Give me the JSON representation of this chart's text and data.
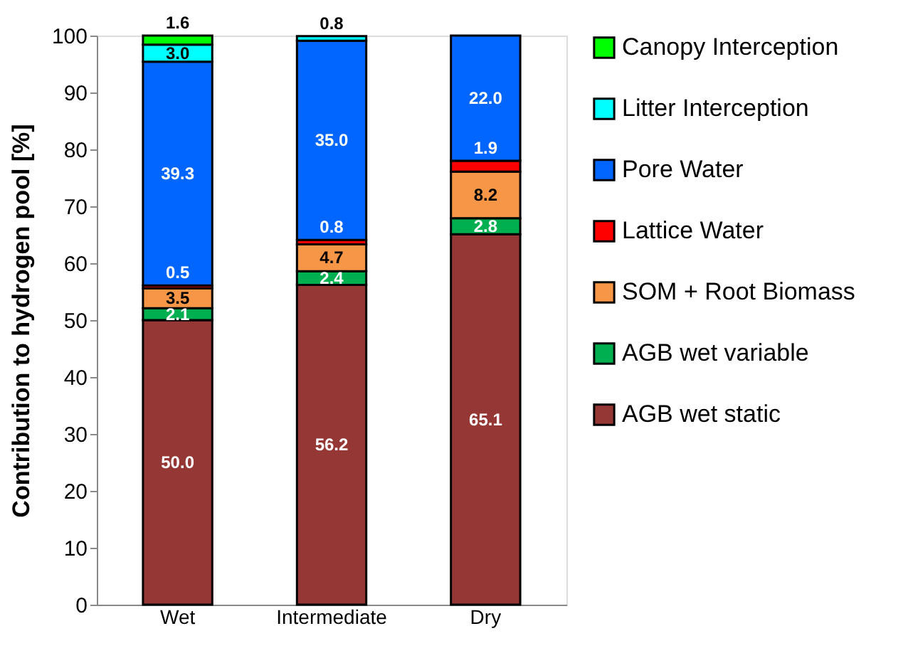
{
  "chart_data": {
    "type": "bar",
    "stacked": true,
    "ylabel": "Contribution to hydrogen pool [%]",
    "categories": [
      "Wet",
      "Intermediate",
      "Dry"
    ],
    "series": [
      {
        "name": "AGB wet static",
        "color": "#953735",
        "values": [
          50.0,
          56.2,
          65.1
        ],
        "value_labels": [
          "50.0",
          "56.2",
          "65.1"
        ]
      },
      {
        "name": "AGB wet variable",
        "color": "#00b050",
        "values": [
          2.1,
          2.4,
          2.8
        ],
        "value_labels": [
          "2.1",
          "2.4",
          "2.8"
        ]
      },
      {
        "name": "SOM + Root Biomass",
        "color": "#f79646",
        "values": [
          3.5,
          4.7,
          8.2
        ],
        "value_labels": [
          "3.5",
          "4.7",
          "8.2"
        ]
      },
      {
        "name": "Lattice Water",
        "color": "#ff0000",
        "values": [
          0.5,
          0.8,
          1.9
        ],
        "value_labels": [
          "0.5",
          "0.8",
          "1.9"
        ]
      },
      {
        "name": "Pore Water",
        "color": "#0066ff",
        "values": [
          39.3,
          35.0,
          22.0
        ],
        "value_labels": [
          "39.3",
          "35.0",
          "22.0"
        ]
      },
      {
        "name": "Litter Interception",
        "color": "#00ffff",
        "values": [
          3.0,
          0.8,
          null
        ],
        "value_labels": [
          "3.0",
          "0.8",
          null
        ]
      },
      {
        "name": "Canopy Interception",
        "color": "#00ff00",
        "values": [
          1.6,
          null,
          null
        ],
        "value_labels": [
          "1.6",
          null,
          null
        ]
      }
    ],
    "ylim": [
      0,
      100
    ],
    "yticks": [
      0,
      10,
      20,
      30,
      40,
      50,
      60,
      70,
      80,
      90,
      100
    ],
    "grid": false,
    "legend": "right"
  }
}
